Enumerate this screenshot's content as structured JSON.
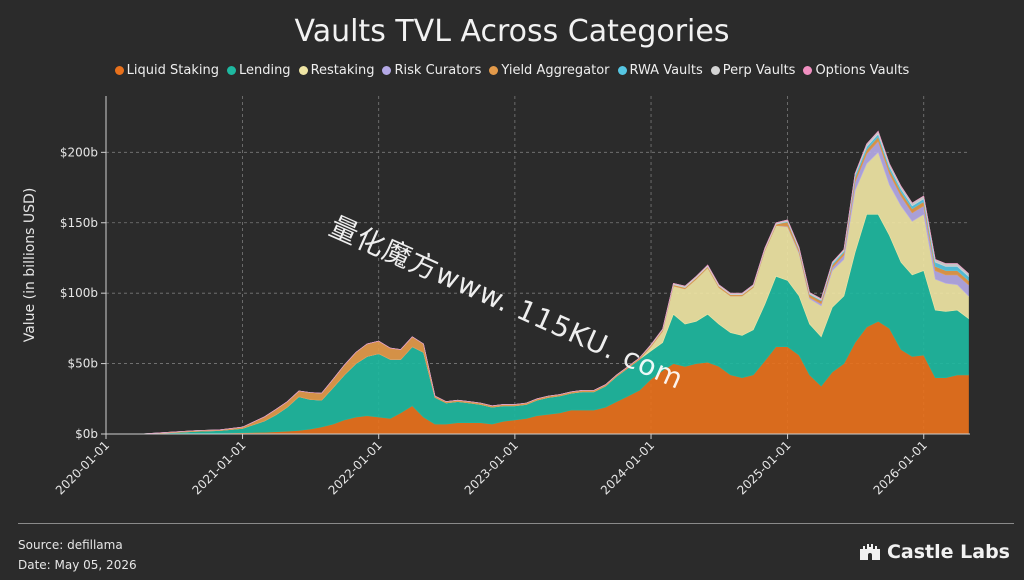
{
  "title": "Vaults TVL Across Categories",
  "source": "Source: defillama",
  "date": "Date: May 05, 2026",
  "brand": "Castle Labs",
  "watermark": "量化魔方www. 115KU. com",
  "chart_data": {
    "type": "area",
    "stacked": true,
    "title": "Vaults TVL Across Categories",
    "ylabel": "Value (in billions USD)",
    "xlabel": "",
    "ylim": [
      0,
      240
    ],
    "yticks": [
      0,
      50,
      100,
      150,
      200
    ],
    "ytick_labels": [
      "$0b",
      "$50b",
      "$100b",
      "$150b",
      "$200b"
    ],
    "xlim": [
      "2020-01-01",
      "2026-05-05"
    ],
    "xtick_labels": [
      "2020-01-01",
      "2021-01-01",
      "2022-01-01",
      "2023-01-01",
      "2024-01-01",
      "2025-01-01",
      "2026-01-01"
    ],
    "grid": true,
    "legend_position": "top-center",
    "x": [
      "2020-01-01",
      "2020-04-01",
      "2020-07-01",
      "2020-09-01",
      "2020-11-01",
      "2021-01-01",
      "2021-03-01",
      "2021-04-01",
      "2021-05-01",
      "2021-06-01",
      "2021-07-01",
      "2021-08-01",
      "2021-09-01",
      "2021-10-01",
      "2021-11-01",
      "2021-12-01",
      "2022-01-01",
      "2022-02-01",
      "2022-03-01",
      "2022-04-01",
      "2022-05-01",
      "2022-06-01",
      "2022-07-01",
      "2022-08-01",
      "2022-09-01",
      "2022-10-01",
      "2022-11-01",
      "2022-12-01",
      "2023-01-01",
      "2023-02-01",
      "2023-03-01",
      "2023-04-01",
      "2023-05-01",
      "2023-06-01",
      "2023-07-01",
      "2023-08-01",
      "2023-09-01",
      "2023-10-01",
      "2023-11-01",
      "2023-12-01",
      "2024-01-01",
      "2024-02-01",
      "2024-03-01",
      "2024-04-01",
      "2024-05-01",
      "2024-06-01",
      "2024-07-01",
      "2024-08-01",
      "2024-09-01",
      "2024-10-01",
      "2024-11-01",
      "2024-12-01",
      "2025-01-01",
      "2025-02-01",
      "2025-03-01",
      "2025-04-01",
      "2025-05-01",
      "2025-06-01",
      "2025-07-01",
      "2025-08-01",
      "2025-09-01",
      "2025-10-01",
      "2025-11-01",
      "2025-12-01",
      "2026-01-01",
      "2026-02-01",
      "2026-03-01",
      "2026-04-01",
      "2026-05-01"
    ],
    "series": [
      {
        "name": "Liquid Staking",
        "color": "#e8711c",
        "values": [
          0,
          0,
          0.2,
          0.4,
          0.6,
          0.9,
          1.2,
          1.6,
          2,
          2.5,
          3.5,
          5,
          7,
          10,
          12,
          13,
          12,
          11,
          15,
          20,
          12,
          7,
          7,
          8,
          8,
          8,
          7,
          9,
          10,
          11,
          13,
          14,
          15,
          17,
          17,
          17,
          19,
          23,
          27,
          31,
          39,
          45,
          50,
          48,
          50,
          51,
          48,
          42,
          40,
          42,
          52,
          62,
          62,
          56,
          42,
          34,
          44,
          50,
          65,
          76,
          80,
          75,
          60,
          55,
          56,
          40,
          40,
          42,
          42
        ]
      },
      {
        "name": "Lending",
        "color": "#1eb8a0",
        "values": [
          0,
          0,
          0.8,
          1.5,
          1.8,
          3,
          8,
          12,
          17,
          24,
          21,
          19,
          26,
          32,
          38,
          42,
          45,
          42,
          38,
          42,
          46,
          19,
          15,
          15,
          14,
          13,
          12,
          11,
          10,
          10,
          11,
          12,
          12,
          12,
          13,
          13,
          15,
          18,
          20,
          22,
          20,
          20,
          35,
          30,
          30,
          34,
          30,
          30,
          30,
          32,
          40,
          50,
          47,
          42,
          36,
          35,
          46,
          48,
          64,
          80,
          76,
          66,
          62,
          58,
          60,
          48,
          47,
          46,
          40
        ]
      },
      {
        "name": "Restaking",
        "color": "#efe5a4",
        "values": [
          0,
          0,
          0,
          0,
          0,
          0,
          0,
          0,
          0,
          0,
          0,
          0,
          0,
          0,
          0,
          0,
          0,
          0,
          0,
          0,
          0,
          0,
          0,
          0,
          0,
          0,
          0,
          0,
          0,
          0,
          0,
          0,
          0,
          0,
          0,
          0,
          0,
          0,
          0,
          0,
          3,
          8,
          20,
          25,
          30,
          33,
          26,
          26,
          28,
          30,
          38,
          36,
          38,
          30,
          18,
          22,
          26,
          26,
          44,
          36,
          44,
          36,
          40,
          38,
          40,
          22,
          20,
          18,
          16
        ]
      },
      {
        "name": "Risk Curators",
        "color": "#b4a9e6",
        "values": [
          0,
          0,
          0,
          0,
          0,
          0,
          0,
          0,
          0,
          0,
          0,
          0,
          0,
          0,
          0,
          0,
          0,
          0,
          0,
          0,
          0,
          0,
          0,
          0,
          0,
          0,
          0,
          0,
          0,
          0,
          0,
          0,
          0,
          0,
          0,
          0,
          0,
          0,
          0,
          0,
          0,
          0,
          0,
          0,
          0,
          0,
          0,
          0,
          0,
          0,
          0,
          0,
          0.5,
          1,
          1,
          1.5,
          2,
          3,
          6,
          7,
          8,
          8,
          7,
          6,
          6,
          6,
          6,
          7,
          8
        ]
      },
      {
        "name": "Yield Aggregator",
        "color": "#e39a4a",
        "values": [
          0,
          0,
          0.5,
          0.6,
          0.6,
          1,
          3,
          4,
          4,
          4,
          5,
          5,
          6,
          7,
          8,
          9,
          9,
          8,
          7,
          7,
          6,
          1,
          1,
          1,
          1,
          1,
          1,
          1,
          1,
          1,
          1,
          1,
          1,
          1,
          1,
          1,
          1,
          1,
          1,
          1,
          1,
          1,
          1,
          1,
          1,
          1,
          1,
          1,
          1,
          1,
          1,
          1,
          3,
          2,
          2,
          2,
          2,
          2,
          3,
          3,
          3,
          3,
          3,
          3,
          3,
          3,
          3,
          3,
          3
        ]
      },
      {
        "name": "RWA Vaults",
        "color": "#56c6e3",
        "values": [
          0,
          0,
          0,
          0,
          0,
          0,
          0,
          0,
          0,
          0,
          0,
          0,
          0,
          0,
          0,
          0,
          0,
          0,
          0,
          0,
          0,
          0,
          0,
          0,
          0,
          0,
          0,
          0,
          0,
          0,
          0,
          0,
          0,
          0,
          0,
          0,
          0,
          0,
          0,
          0,
          0,
          0,
          0,
          0,
          0,
          0,
          0,
          0,
          0,
          0,
          0,
          0,
          0.5,
          0.5,
          0.5,
          0.5,
          1,
          1,
          2,
          2,
          2,
          2,
          2,
          2,
          2,
          3,
          3,
          3,
          3
        ]
      },
      {
        "name": "Perp Vaults",
        "color": "#d4d4d4",
        "values": [
          0,
          0,
          0,
          0,
          0,
          0,
          0,
          0,
          0,
          0,
          0,
          0,
          0,
          0,
          0,
          0,
          0,
          0,
          0,
          0,
          0,
          0,
          0,
          0,
          0,
          0,
          0,
          0,
          0,
          0,
          0,
          0,
          0,
          0,
          0,
          0,
          0,
          0,
          0,
          0,
          0.5,
          0.5,
          1,
          1,
          1,
          1,
          1,
          1,
          1,
          1,
          1,
          1,
          1,
          1,
          1,
          1,
          1,
          1,
          1,
          2,
          2,
          2,
          2,
          2,
          2,
          2,
          2,
          2,
          2
        ]
      },
      {
        "name": "Options Vaults",
        "color": "#f08fc0",
        "values": [
          0,
          0,
          0,
          0,
          0,
          0,
          0,
          0,
          0,
          0,
          0,
          0,
          0,
          0,
          0,
          0,
          0,
          0,
          0,
          0,
          0,
          0,
          0,
          0,
          0,
          0,
          0,
          0,
          0,
          0,
          0,
          0,
          0,
          0,
          0,
          0,
          0,
          0,
          0,
          0,
          0,
          0,
          0,
          0,
          0,
          0,
          0,
          0,
          0,
          0,
          0,
          0,
          0,
          0,
          0,
          0,
          0,
          0,
          0,
          0,
          0,
          0,
          0,
          0,
          0,
          0,
          0,
          0,
          0
        ]
      }
    ]
  }
}
